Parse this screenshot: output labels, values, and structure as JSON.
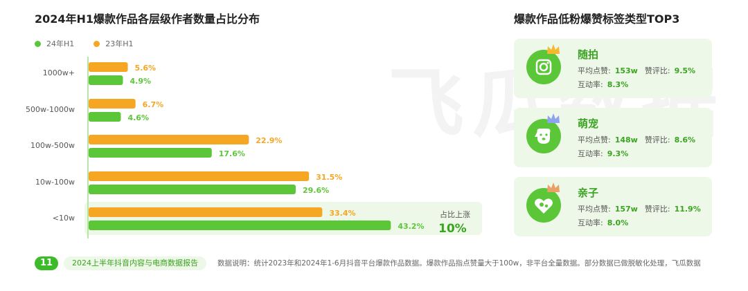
{
  "left_title": "2024年H1爆款作品各层级作者数量占比分布",
  "chart_data": {
    "type": "bar",
    "orientation": "horizontal",
    "title": "2024年H1爆款作品各层级作者数量占比分布",
    "unit": "%",
    "categories": [
      "1000w+",
      "500w-1000w",
      "100w-500w",
      "10w-100w",
      "<10w"
    ],
    "series": [
      {
        "name": "23年H1",
        "color": "#f5a623",
        "values": [
          5.6,
          6.7,
          22.9,
          31.5,
          33.4
        ],
        "labels": [
          "5.6%",
          "6.7%",
          "22.9%",
          "31.5%",
          "33.4%"
        ]
      },
      {
        "name": "24年H1",
        "color": "#5cc639",
        "values": [
          4.9,
          4.6,
          17.6,
          29.6,
          43.2
        ],
        "labels": [
          "4.9%",
          "4.6%",
          "17.6%",
          "29.6%",
          "43.2%"
        ]
      }
    ],
    "legend_placement": "top-left",
    "annotation": {
      "label": "占比上涨",
      "value": "10%",
      "category": "<10w"
    }
  },
  "colors": {
    "green": "#5cc639",
    "orange": "#f5a623",
    "highlight_bg": "#eef8e8"
  },
  "watermark": "飞瓜数据",
  "right_title": "爆款作品低粉爆赞标签类型TOP3",
  "tags": [
    {
      "name": "随拍",
      "icon": "camera-icon",
      "avg_like_label": "平均点赞:",
      "avg_like": "153w",
      "ratio_label": "赞评比:",
      "ratio": "9.5%",
      "interact_label": "互动率:",
      "interact": "8.3%"
    },
    {
      "name": "萌宠",
      "icon": "dog-icon",
      "avg_like_label": "平均点赞:",
      "avg_like": "148w",
      "ratio_label": "赞评比:",
      "ratio": "8.6%",
      "interact_label": "互动率:",
      "interact": "9.3%"
    },
    {
      "name": "亲子",
      "icon": "heart-family-icon",
      "avg_like_label": "平均点赞:",
      "avg_like": "157w",
      "ratio_label": "赞评比:",
      "ratio": "11.9%",
      "interact_label": "互动率:",
      "interact": "8.0%"
    }
  ],
  "footer": {
    "page_number": "11",
    "report_name": "2024上半年抖音内容与电商数据报告",
    "note": "数据说明：统计2023年和2024年1-6月抖音平台爆款作品数据。爆款作品指点赞量大于100w，非平台全量数据。部分数据已做脱敏化处理，飞瓜数据"
  }
}
